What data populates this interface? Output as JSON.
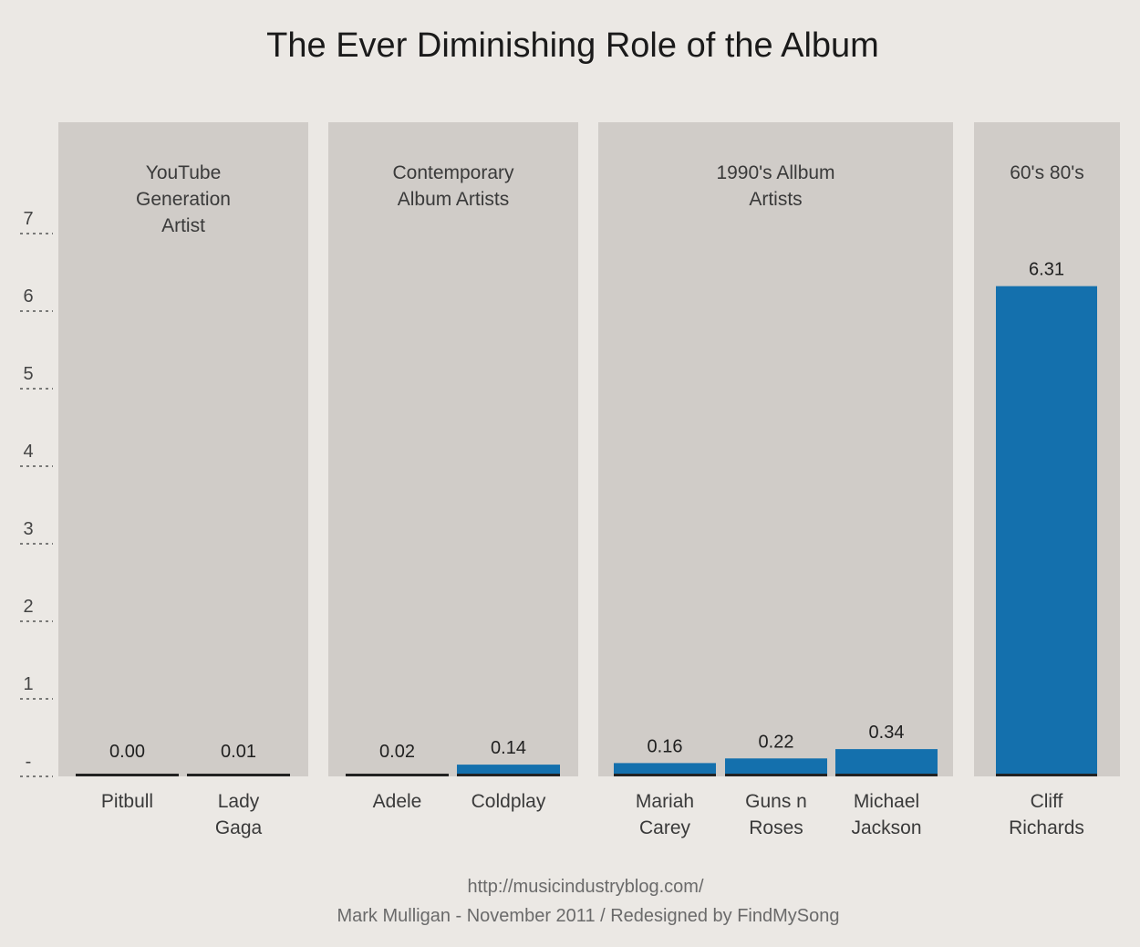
{
  "title": "The Ever Diminishing Role of the Album",
  "footer": {
    "line1": "http://musicindustryblog.com/",
    "line2": "Mark Mulligan - November 2011 / Redesigned by FindMySong"
  },
  "colors": {
    "bar": "#1470ad",
    "panel": "#d0ccc8",
    "background": "#ebe8e4"
  },
  "chart_data": {
    "type": "bar",
    "title": "The Ever Diminishing Role of the Album",
    "xlabel": "",
    "ylabel": "",
    "ylim": [
      0,
      7
    ],
    "y_ticks": [
      "-",
      "1",
      "2",
      "3",
      "4",
      "5",
      "6",
      "7"
    ],
    "grid": false,
    "groups": [
      {
        "label": [
          "YouTube",
          "Generation",
          "Artist"
        ],
        "bars": [
          {
            "category": [
              "Pitbull"
            ],
            "value": 0.0,
            "label": "0.00"
          },
          {
            "category": [
              "Lady",
              "Gaga"
            ],
            "value": 0.01,
            "label": "0.01"
          }
        ]
      },
      {
        "label": [
          "Contemporary",
          "Album Artists"
        ],
        "bars": [
          {
            "category": [
              "Adele"
            ],
            "value": 0.02,
            "label": "0.02"
          },
          {
            "category": [
              "Coldplay"
            ],
            "value": 0.14,
            "label": "0.14"
          }
        ]
      },
      {
        "label": [
          "1990's Allbum",
          "Artists"
        ],
        "bars": [
          {
            "category": [
              "Mariah",
              "Carey"
            ],
            "value": 0.16,
            "label": "0.16"
          },
          {
            "category": [
              "Guns n",
              "Roses"
            ],
            "value": 0.22,
            "label": "0.22"
          },
          {
            "category": [
              "Michael",
              "Jackson"
            ],
            "value": 0.34,
            "label": "0.34"
          }
        ]
      },
      {
        "label": [
          "60's 80's"
        ],
        "bars": [
          {
            "category": [
              "Cliff",
              "Richards"
            ],
            "value": 6.31,
            "label": "6.31"
          }
        ]
      }
    ]
  }
}
